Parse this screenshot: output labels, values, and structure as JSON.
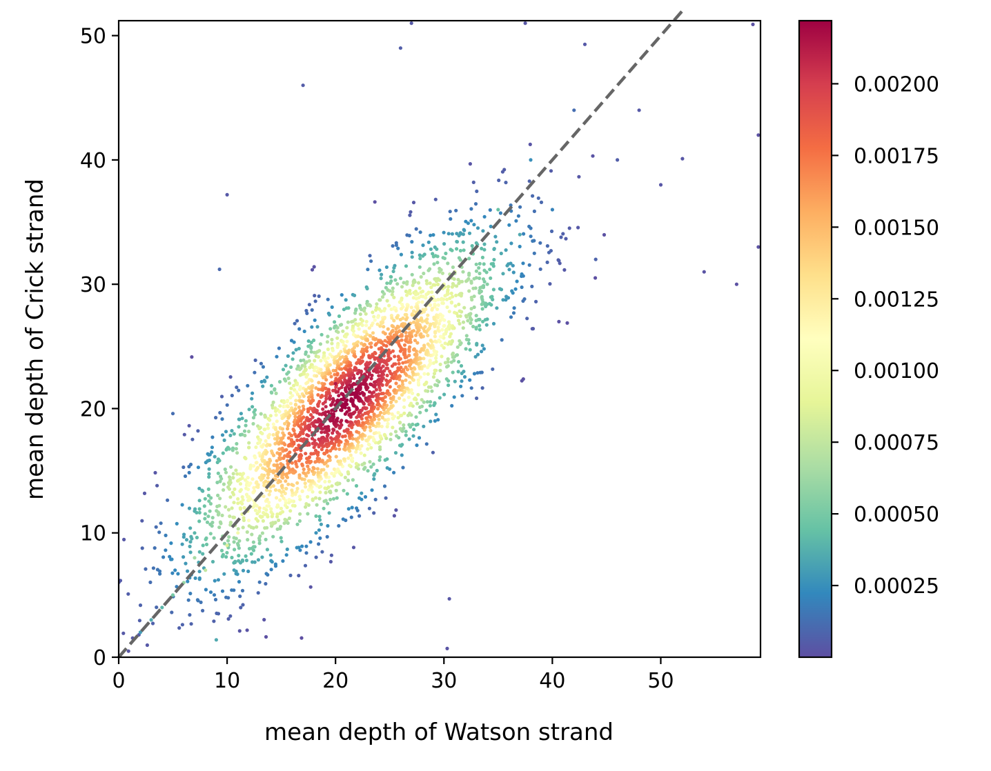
{
  "chart_data": {
    "type": "scatter",
    "title": "",
    "xlabel": "mean depth of Watson strand",
    "ylabel": "mean depth of Crick strand",
    "xlim": [
      0,
      59.2
    ],
    "ylim": [
      0,
      51.2
    ],
    "x_ticks": [
      "0",
      "10",
      "20",
      "30",
      "40",
      "50"
    ],
    "y_ticks": [
      "0",
      "10",
      "20",
      "30",
      "40",
      "50"
    ],
    "grid": false,
    "legend": "none",
    "reference_line": {
      "style": "dashed",
      "color": "#666666",
      "from": [
        0,
        0
      ],
      "to": [
        52,
        52
      ]
    },
    "colorbar": {
      "label": "",
      "range": [
        0.0,
        0.00222
      ],
      "ticks": [
        "0.00025",
        "0.00050",
        "0.00075",
        "0.00100",
        "0.00125",
        "0.00150",
        "0.00175",
        "0.00200"
      ],
      "colormap": "Spectral_r",
      "colors": [
        "#5e4fa2",
        "#3288bd",
        "#66c2a5",
        "#abdda4",
        "#e6f598",
        "#ffffbf",
        "#fee08b",
        "#fdae61",
        "#f46d43",
        "#d53e4f",
        "#9e0142"
      ]
    },
    "series": [
      {
        "values_note_omitted": true,
        "points": [
          [
            21,
            21,
            0.00222
          ],
          [
            20,
            20,
            0.0022
          ],
          [
            22,
            22,
            0.00218
          ],
          [
            19,
            19,
            0.00212
          ],
          [
            23,
            23,
            0.0021
          ],
          [
            21,
            19,
            0.00215
          ],
          [
            20,
            22,
            0.00214
          ],
          [
            18,
            18,
            0.002
          ],
          [
            24,
            24,
            0.00198
          ],
          [
            22,
            20,
            0.00216
          ],
          [
            17,
            18,
            0.00185
          ],
          [
            25,
            23,
            0.0019
          ],
          [
            16,
            17,
            0.0017
          ],
          [
            26,
            24,
            0.00175
          ],
          [
            15,
            16,
            0.0016
          ],
          [
            27,
            26,
            0.0015
          ],
          [
            14,
            14,
            0.00145
          ],
          [
            28,
            27,
            0.0013
          ],
          [
            13,
            12,
            0.00125
          ],
          [
            29,
            29,
            0.0011
          ],
          [
            12,
            11,
            0.0011
          ],
          [
            30,
            30,
            0.00095
          ],
          [
            11,
            10,
            0.001
          ],
          [
            31,
            31,
            0.00085
          ],
          [
            10,
            9,
            0.00085
          ],
          [
            8,
            7,
            0.00075
          ],
          [
            32,
            32,
            0.0007
          ],
          [
            7,
            8,
            0.00065
          ],
          [
            34,
            30,
            0.00055
          ],
          [
            6,
            6,
            0.0006
          ],
          [
            35,
            36,
            0.00045
          ],
          [
            5,
            5,
            0.0005
          ],
          [
            37,
            34,
            0.00035
          ],
          [
            4,
            4,
            0.0004
          ],
          [
            38,
            40,
            0.00025
          ],
          [
            3,
            3,
            0.00035
          ],
          [
            40,
            36,
            0.0002
          ],
          [
            2,
            2,
            0.0003
          ],
          [
            42,
            44,
            0.00012
          ],
          [
            44,
            32,
            8e-05
          ],
          [
            46,
            40,
            6e-05
          ],
          [
            48,
            44,
            4e-05
          ],
          [
            50,
            38,
            3e-05
          ],
          [
            54,
            31,
            2e-05
          ],
          [
            57,
            30,
            1e-05
          ],
          [
            59,
            42,
            1e-05
          ],
          [
            59,
            33,
            1e-05
          ],
          [
            30.3,
            0.7,
            2e-05
          ],
          [
            30.5,
            4.7,
            3e-05
          ],
          [
            9,
            1.4,
            0.00035
          ],
          [
            5,
            19.6,
            0.00012
          ],
          [
            9.3,
            31.2,
            0.0001
          ],
          [
            10,
            37.2,
            4e-05
          ],
          [
            17,
            46,
            5e-05
          ],
          [
            26,
            49,
            6e-05
          ],
          [
            27,
            51,
            4e-05
          ],
          [
            37.5,
            51,
            3e-05
          ],
          [
            58.5,
            50.9,
            1e-05
          ],
          [
            43,
            49.3,
            4e-05
          ],
          [
            52,
            40.1,
            3e-05
          ]
        ]
      }
    ]
  }
}
